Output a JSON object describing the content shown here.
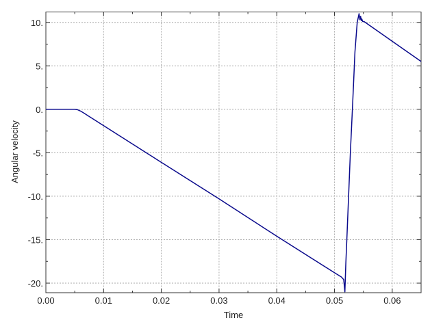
{
  "chart_data": {
    "type": "line",
    "title": "",
    "xlabel": "Time",
    "ylabel": "Angular velocity",
    "xlim": [
      0,
      0.065
    ],
    "ylim": [
      -21.1,
      11.2
    ],
    "xticks": [
      0,
      0.01,
      0.02,
      0.03,
      0.04,
      0.05,
      0.06
    ],
    "xtick_labels": [
      "0.00",
      "0.01",
      "0.02",
      "0.03",
      "0.04",
      "0.05",
      "0.06"
    ],
    "yticks": [
      10,
      5,
      0,
      -5,
      -10,
      -15,
      -20
    ],
    "ytick_labels": [
      "10.",
      "5.",
      "0.",
      "-5.",
      "-10.",
      "-15.",
      "-20."
    ],
    "grid": true,
    "line_color": "#0a0a8c",
    "series": [
      {
        "x": [
          0,
          0.005,
          0.0055,
          0.006,
          0.0065,
          0.02,
          0.03,
          0.04,
          0.05,
          0.0512,
          0.0516,
          0.0518,
          0.05196,
          0.05216,
          0.05275,
          0.05314,
          0.05354,
          0.05393,
          0.05425,
          0.0544,
          0.05453,
          0.05463,
          0.05473,
          0.0549,
          0.05512,
          0.065
        ],
        "y": [
          0,
          0,
          -0.05,
          -0.2,
          -0.4,
          -6.1,
          -10.3,
          -14.6,
          -18.8,
          -19.3,
          -19.6,
          -21.0,
          -17.7,
          -14.7,
          -5.0,
          0.55,
          6.6,
          10.0,
          11.0,
          10.3,
          10.7,
          10.2,
          10.4,
          10.1,
          10.1,
          5.5
        ]
      }
    ]
  }
}
